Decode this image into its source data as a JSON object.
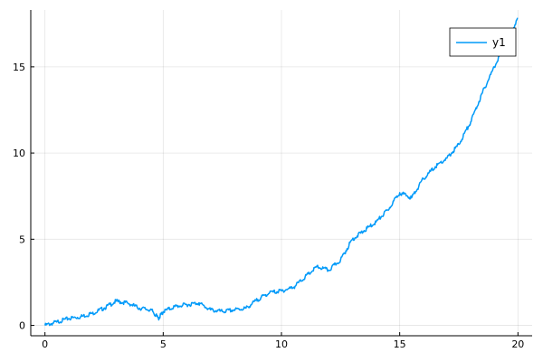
{
  "chart_data": {
    "type": "line",
    "title": "",
    "xlabel": "",
    "ylabel": "",
    "xlim": [
      -0.6,
      20.6
    ],
    "ylim": [
      -0.6,
      18.3
    ],
    "x_ticks": [
      0,
      5,
      10,
      15,
      20
    ],
    "x_tick_labels": [
      "0",
      "5",
      "10",
      "15",
      "20"
    ],
    "y_ticks": [
      0,
      5,
      10,
      15
    ],
    "y_tick_labels": [
      "0",
      "5",
      "10",
      "15"
    ],
    "grid": true,
    "legend": {
      "position": "top-right",
      "entries": [
        "y1"
      ]
    },
    "series": [
      {
        "name": "y1",
        "color": "#009af9",
        "x": [
          0,
          0.5,
          1.0,
          1.5,
          2.0,
          2.5,
          3.0,
          3.5,
          4.0,
          4.5,
          4.8,
          5.0,
          5.5,
          6.0,
          6.5,
          7.0,
          7.5,
          8.0,
          8.5,
          9.0,
          9.5,
          10.0,
          10.5,
          11.0,
          11.5,
          12.0,
          12.5,
          13.0,
          13.5,
          14.0,
          14.5,
          15.0,
          15.5,
          16.0,
          16.5,
          17.0,
          17.5,
          18.0,
          18.5,
          19.0,
          19.5,
          20.0
        ],
        "y": [
          0.0,
          0.2,
          0.4,
          0.5,
          0.7,
          1.0,
          1.4,
          1.3,
          1.0,
          0.9,
          0.4,
          0.8,
          1.1,
          1.2,
          1.3,
          0.9,
          0.8,
          0.9,
          1.0,
          1.5,
          1.9,
          2.0,
          2.2,
          2.8,
          3.4,
          3.2,
          3.8,
          5.0,
          5.5,
          6.0,
          6.7,
          7.7,
          7.4,
          8.5,
          9.2,
          9.7,
          10.5,
          11.8,
          13.5,
          15.0,
          16.5,
          17.8
        ]
      }
    ]
  }
}
